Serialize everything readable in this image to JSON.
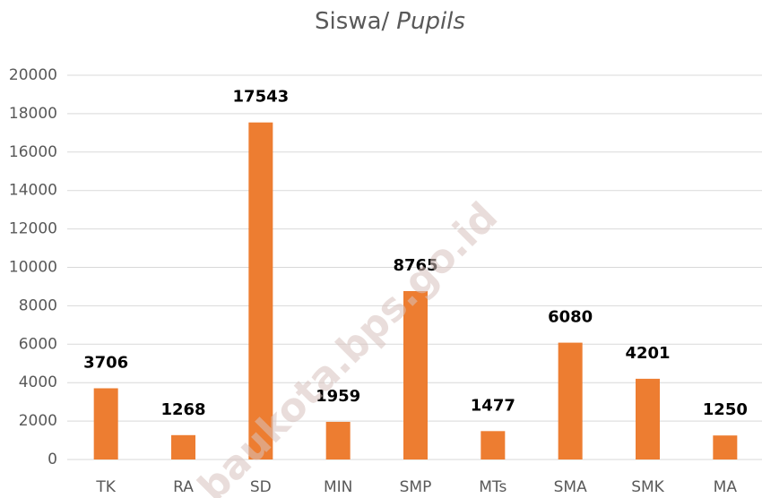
{
  "chart_data": {
    "type": "bar",
    "title": "Siswa/",
    "title_italic": "Pupils",
    "categories": [
      "TK",
      "RA",
      "SD",
      "MIN",
      "SMP",
      "MTs",
      "SMA",
      "SMK",
      "MA"
    ],
    "values": [
      3706,
      1268,
      17543,
      1959,
      8765,
      1477,
      6080,
      4201,
      1250
    ],
    "color": "#ed7d31",
    "ylim": [
      0,
      20000
    ],
    "yticks": [
      0,
      2000,
      4000,
      6000,
      8000,
      10000,
      12000,
      14000,
      16000,
      18000,
      20000
    ],
    "grid": true,
    "watermark": "baukota.bps.go.id"
  }
}
